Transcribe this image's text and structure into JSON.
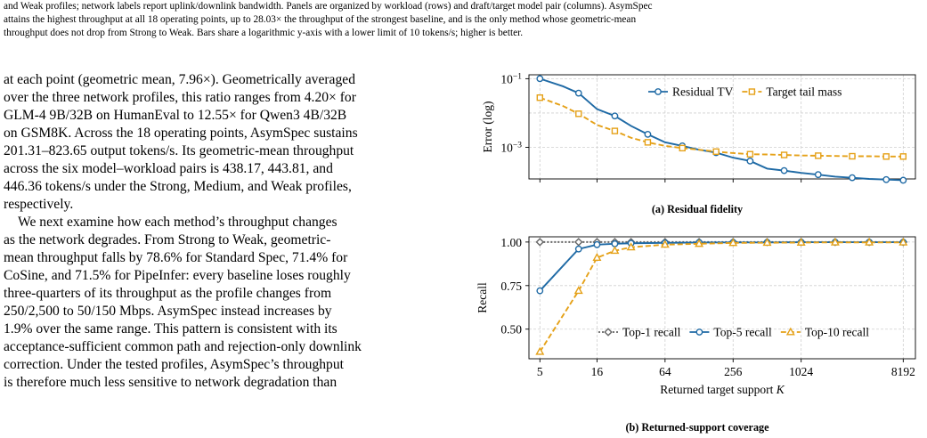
{
  "caption_tail": [
    "and Weak profiles; network labels report uplink/downlink bandwidth. Panels are organized by workload (rows) and draft/target model pair (columns). AsymSpec",
    "attains the highest throughput at all 18 operating points, up to 28.03× the throughput of the strongest baseline, and is the only method whose geometric-mean",
    "throughput does not drop from Strong to Weak. Bars share a logarithmic y-axis with a lower limit of 10 tokens/s; higher is better."
  ],
  "body": {
    "paragraph1": [
      "at each point (geometric mean, 7.96×). Geometrically averaged",
      "over the three network profiles, this ratio ranges from 4.20× for",
      "GLM-4 9B/32B on HumanEval to 12.55× for Qwen3 4B/32B",
      "on GSM8K. Across the 18 operating points, AsymSpec sustains",
      "201.31–823.65 output tokens/s. Its geometric-mean throughput",
      "across the six model–workload pairs is 438.17, 443.81, and",
      "446.36 tokens/s under the Strong, Medium, and Weak profiles,",
      "respectively."
    ],
    "paragraph2": [
      "We next examine how each method’s throughput changes",
      "as the network degrades. From Strong to Weak, geometric-",
      "mean throughput falls by 78.6% for Standard Spec, 71.4% for",
      "CoSine, and 71.5% for PipeInfer: every baseline loses roughly",
      "three-quarters of its throughput as the profile changes from",
      "250/2,500 to 50/150 Mbps. AsymSpec instead increases by",
      "1.9% over the same range. This pattern is consistent with its",
      "acceptance-sufficient common path and rejection-only downlink",
      "correction. Under the tested profiles, AsymSpec’s throughput",
      "is therefore much less sensitive to network degradation than"
    ]
  },
  "colors": {
    "blue": "#1f6aa5",
    "orange": "#e5a118",
    "gray": "#666666",
    "grid": "#cfcfcf"
  },
  "chart_data": [
    {
      "type": "line",
      "caption": "(a) Residual fidelity",
      "ylabel": "Error (log)",
      "xlabel": "",
      "xscale": "log2",
      "yscale": "log",
      "x": [
        5,
        8,
        11,
        16,
        23,
        32,
        45,
        64,
        91,
        128,
        181,
        256,
        362,
        512,
        724,
        1024,
        1448,
        2048,
        2896,
        4096,
        5793,
        8192
      ],
      "xlim": [
        4,
        10500
      ],
      "ylim": [
        0.00012,
        0.13
      ],
      "yticks": [
        0.1,
        0.001
      ],
      "ytick_labels": [
        "10^-1",
        "10^-3"
      ],
      "grid": true,
      "legend": "top-right",
      "series": [
        {
          "name": "Residual TV",
          "color": "blue",
          "marker": "circle",
          "dash": "solid",
          "x": [
            5,
            8,
            11,
            16,
            23,
            32,
            45,
            64,
            91,
            128,
            181,
            256,
            362,
            512,
            724,
            1024,
            1448,
            2048,
            2896,
            4096,
            5793,
            8192
          ],
          "values": [
            0.1,
            0.06,
            0.038,
            0.013,
            0.0082,
            0.0042,
            0.0024,
            0.0014,
            0.0011,
            0.00085,
            0.0007,
            0.0005,
            0.0004,
            0.00024,
            0.00021,
            0.00018,
            0.00016,
            0.00014,
            0.00013,
            0.00012,
            0.000115,
            0.00011
          ]
        },
        {
          "name": "Target tail mass",
          "color": "orange",
          "marker": "square",
          "dash": "dashed",
          "x": [
            5,
            8,
            11,
            16,
            23,
            32,
            45,
            64,
            91,
            128,
            181,
            256,
            362,
            512,
            724,
            1024,
            1448,
            2048,
            2896,
            4096,
            5793,
            8192
          ],
          "values": [
            0.028,
            0.016,
            0.0095,
            0.0045,
            0.003,
            0.0019,
            0.0014,
            0.0011,
            0.00095,
            0.00085,
            0.00075,
            0.00068,
            0.00063,
            0.00062,
            0.0006,
            0.00058,
            0.00057,
            0.00056,
            0.00055,
            0.00055,
            0.00054,
            0.00054
          ]
        }
      ]
    },
    {
      "type": "line",
      "caption": "(b) Returned-support coverage",
      "ylabel": "Recall",
      "xlabel": "Returned target support K",
      "xscale": "log2",
      "x_ticks": [
        5,
        16,
        64,
        256,
        1024,
        8192
      ],
      "x_tick_labels": [
        "5",
        "16",
        "64",
        "256",
        "1024",
        "8192"
      ],
      "xlim": [
        4,
        10500
      ],
      "ylim": [
        0.33,
        1.03
      ],
      "yticks": [
        0.5,
        0.75,
        1.0
      ],
      "ytick_labels": [
        "0.50",
        "0.75",
        "1.00"
      ],
      "grid": true,
      "legend": "bottom-right",
      "series": [
        {
          "name": "Top-1 recall",
          "color": "gray",
          "marker": "diamond",
          "dash": "dotted",
          "x": [
            5,
            11,
            16,
            23,
            32,
            64,
            128,
            256,
            512,
            1024,
            2048,
            4096,
            8192
          ],
          "values": [
            1.0,
            1.0,
            1.0,
            1.0,
            1.0,
            1.0,
            1.0,
            1.0,
            1.0,
            1.0,
            1.0,
            1.0,
            1.0
          ]
        },
        {
          "name": "Top-5 recall",
          "color": "blue",
          "marker": "circle",
          "dash": "solid",
          "x": [
            5,
            11,
            16,
            23,
            32,
            64,
            128,
            256,
            512,
            1024,
            2048,
            4096,
            8192
          ],
          "values": [
            0.72,
            0.96,
            0.985,
            0.99,
            0.993,
            0.995,
            0.997,
            0.998,
            0.998,
            0.999,
            0.999,
            0.999,
            0.999
          ]
        },
        {
          "name": "Top-10 recall",
          "color": "orange",
          "marker": "triangle",
          "dash": "dashed",
          "x": [
            5,
            11,
            16,
            23,
            32,
            64,
            128,
            256,
            512,
            1024,
            2048,
            4096,
            8192
          ],
          "values": [
            0.37,
            0.72,
            0.91,
            0.95,
            0.97,
            0.985,
            0.99,
            0.995,
            0.996,
            0.997,
            0.998,
            0.998,
            0.998
          ]
        }
      ]
    }
  ]
}
